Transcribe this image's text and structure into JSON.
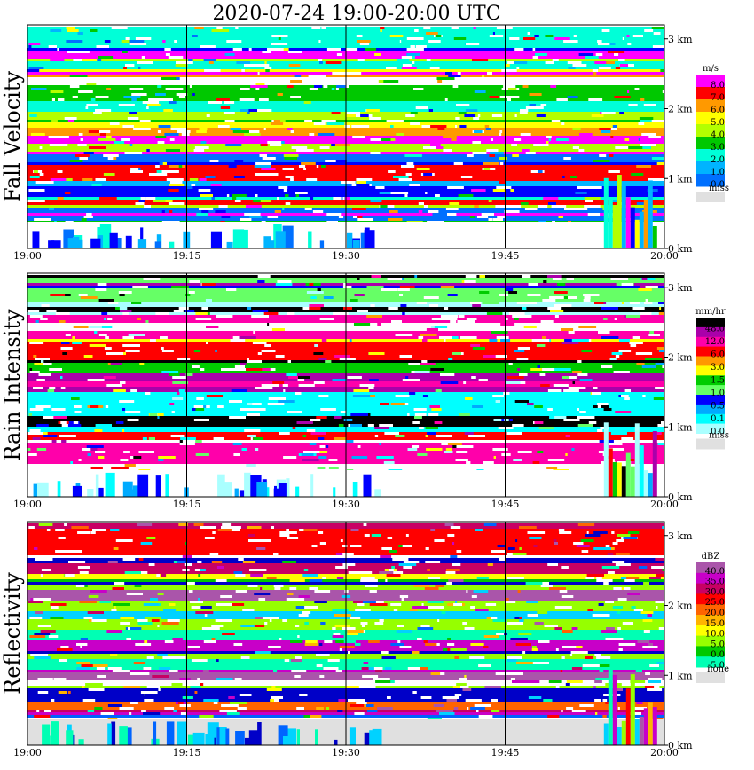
{
  "title": "2020-07-24   19:00-20:00 UTC",
  "palettes": {
    "missing": "#e0e0e0",
    "fall_velocity": [
      "#0000ff",
      "#0070ff",
      "#00b4ff",
      "#00ffd8",
      "#00c800",
      "#b4ff00",
      "#ffff00",
      "#ff9900",
      "#ff0000",
      "#ff00ff"
    ],
    "rain_intensity": [
      "#aaffff",
      "#00ffff",
      "#00aaff",
      "#0000ff",
      "#66ff66",
      "#00cc00",
      "#ffff00",
      "#ff9900",
      "#ff0000",
      "#ff00aa",
      "#aa00aa",
      "#000000"
    ],
    "reflectivity": [
      "#0000c8",
      "#0064ff",
      "#00d2ff",
      "#00ffb4",
      "#00c800",
      "#96ff00",
      "#ffff00",
      "#ffb400",
      "#ff6400",
      "#ff0000",
      "#c80064",
      "#c800c8",
      "#aa55aa"
    ]
  },
  "chart_data": [
    {
      "type": "heatmap",
      "name": "fall-velocity",
      "ylabel": "Fall Velocity",
      "xticks": [
        "19:00",
        "19:15",
        "19:30",
        "19:45",
        "20:00"
      ],
      "yticks": [
        "0 km",
        "1 km",
        "2 km",
        "3 km"
      ],
      "xlim": [
        "19:00",
        "20:00"
      ],
      "ylim_km": [
        0,
        3.2
      ],
      "colorbar": {
        "unit": "m/s",
        "labels": [
          "8.0",
          "7.0",
          "6.0",
          "5.0",
          "4.0",
          "3.0",
          "2.0",
          "1.0",
          "0.0"
        ],
        "missing_label": "miss"
      }
    },
    {
      "type": "heatmap",
      "name": "rain-intensity",
      "ylabel": "Rain Intensity",
      "xticks": [
        "19:00",
        "19:15",
        "19:30",
        "19:45",
        "20:00"
      ],
      "yticks": [
        "0 km",
        "1 km",
        "2 km",
        "3 km"
      ],
      "xlim": [
        "19:00",
        "20:00"
      ],
      "ylim_km": [
        0,
        3.2
      ],
      "colorbar": {
        "unit": "mm/hr",
        "labels": [
          "48.0",
          "12.0",
          "6.0",
          "3.0",
          "1.5",
          "1.0",
          "0.5",
          "0.1",
          "0.0"
        ],
        "missing_label": "miss"
      }
    },
    {
      "type": "heatmap",
      "name": "reflectivity",
      "ylabel": "Reflectivity",
      "xticks": [
        "19:00",
        "19:15",
        "19:30",
        "19:45",
        "20:00"
      ],
      "yticks": [
        "0 km",
        "1 km",
        "2 km",
        "3 km"
      ],
      "xlim": [
        "19:00",
        "20:00"
      ],
      "ylim_km": [
        0,
        3.2
      ],
      "colorbar": {
        "unit": "dBZ",
        "labels": [
          "40.0",
          "35.0",
          "30.0",
          "25.0",
          "20.0",
          "15.0",
          "10.0",
          "5.0",
          "0.0",
          "-5.0"
        ],
        "missing_label": "none"
      }
    }
  ]
}
